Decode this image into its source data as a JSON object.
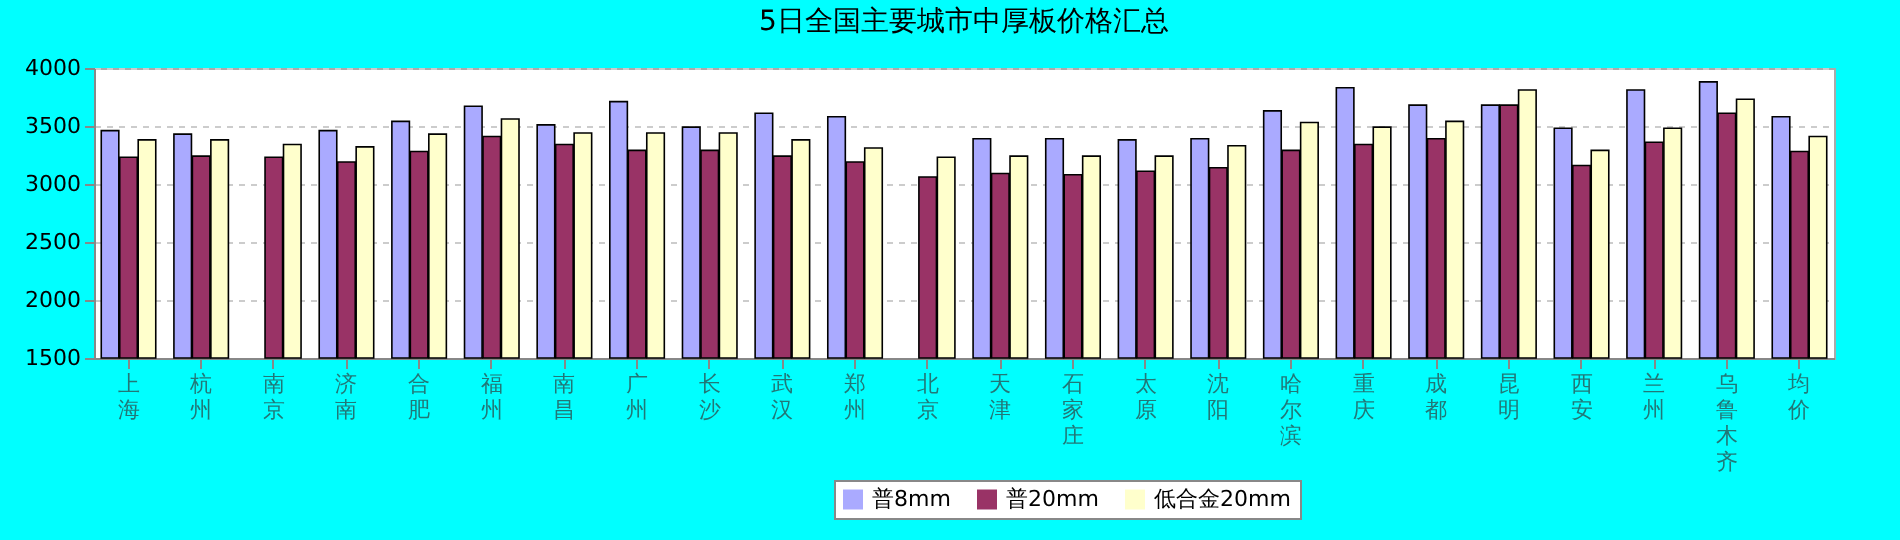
{
  "chart_data": {
    "type": "bar",
    "title": "5日全国主要城市中厚板价格汇总",
    "categories": [
      "上海",
      "杭州",
      "南京",
      "济南",
      "合肥",
      "福州",
      "南昌",
      "广州",
      "长沙",
      "武汉",
      "郑州",
      "北京",
      "天津",
      "石家庄",
      "太原",
      "沈阳",
      "哈尔滨",
      "重庆",
      "成都",
      "昆明",
      "西安",
      "兰州",
      "乌鲁木齐",
      "均价"
    ],
    "series": [
      {
        "name": "普8mm",
        "color": "#aaaaff",
        "values": [
          3460,
          3430,
          null,
          3460,
          3540,
          3670,
          3510,
          3710,
          3490,
          3610,
          3580,
          null,
          3390,
          3390,
          3380,
          3390,
          3630,
          3830,
          3680,
          3680,
          3480,
          3810,
          3880,
          3580
        ]
      },
      {
        "name": "普20mm",
        "color": "#993366",
        "values": [
          3230,
          3240,
          3230,
          3190,
          3280,
          3410,
          3340,
          3290,
          3290,
          3240,
          3190,
          3060,
          3090,
          3080,
          3110,
          3140,
          3290,
          3340,
          3390,
          3680,
          3160,
          3360,
          3610,
          3280
        ]
      },
      {
        "name": "低合金20mm",
        "color": "#ffffcc",
        "values": [
          3380,
          3380,
          3340,
          3320,
          3430,
          3560,
          3440,
          3440,
          3440,
          3380,
          3310,
          3230,
          3240,
          3240,
          3240,
          3330,
          3530,
          3490,
          3540,
          3810,
          3290,
          3480,
          3730,
          3410
        ]
      }
    ],
    "ylim": [
      1500,
      4000
    ],
    "yticks": [
      1500,
      2000,
      2500,
      3000,
      3500,
      4000
    ],
    "grid": "y",
    "legend": "bottom"
  }
}
